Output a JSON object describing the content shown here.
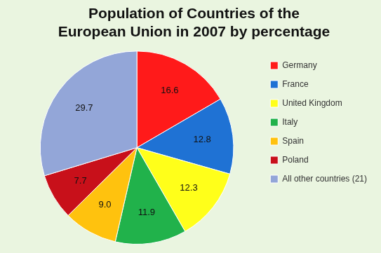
{
  "chart_data": {
    "type": "pie",
    "title": "Population of Countries of the European Union in 2007 by percentage",
    "categories": [
      "Germany",
      "France",
      "United Kingdom",
      "Italy",
      "Spain",
      "Poland",
      "All other countries (21)"
    ],
    "values": [
      16.6,
      12.8,
      12.3,
      11.9,
      9.0,
      7.7,
      29.7
    ],
    "value_labels": [
      "16.6",
      "12.8",
      "12.3",
      "11.9",
      "9.0",
      "7.7",
      "29.7"
    ],
    "colors": [
      "#ff1a1a",
      "#1f72d4",
      "#ffff1a",
      "#21b24b",
      "#ffc20e",
      "#c8101a",
      "#93a6d8"
    ],
    "data_labels": true,
    "legend": "right"
  }
}
